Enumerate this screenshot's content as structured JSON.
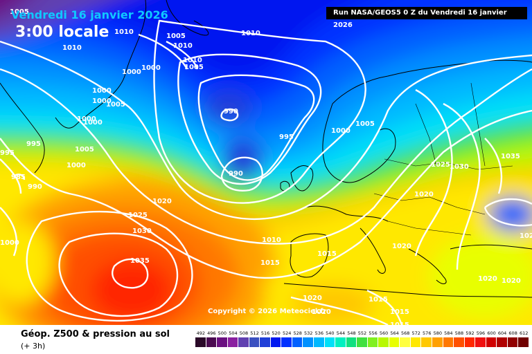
{
  "header": {
    "date": "Vendredi 16 janvier 2026",
    "time": "3:00 locale",
    "run_info": "Run NASA/GEOS5 0 Z du Vendredi 16 janvier 2026"
  },
  "footer": {
    "title": "Géop. Z500 & pression au sol",
    "subtitle": "(+ 3h)",
    "copyright": "Copyright © 2026 Meteociel.fr"
  },
  "legend": {
    "values": [
      "492",
      "496",
      "500",
      "504",
      "508",
      "512",
      "516",
      "520",
      "524",
      "528",
      "532",
      "536",
      "540",
      "544",
      "548",
      "552",
      "556",
      "560",
      "564",
      "568",
      "572",
      "576",
      "580",
      "584",
      "588",
      "592",
      "596",
      "600",
      "604",
      "608",
      "612"
    ],
    "colors": [
      "#2a0a28",
      "#4a0a50",
      "#6a1080",
      "#8a20a0",
      "#6040b0",
      "#3a50c0",
      "#2040d8",
      "#0018f0",
      "#0030ff",
      "#0060ff",
      "#0090ff",
      "#00b8ff",
      "#00e0f8",
      "#00f0c0",
      "#10e080",
      "#40e040",
      "#80f020",
      "#b8f800",
      "#e8ff00",
      "#ffff40",
      "#ffe800",
      "#ffc800",
      "#ffa000",
      "#ff7800",
      "#ff5000",
      "#ff2800",
      "#f01010",
      "#d00000",
      "#b00000",
      "#900000",
      "#700000"
    ]
  },
  "isobars": {
    "labels": [
      "1005",
      "1010",
      "1005",
      "1010",
      "1010",
      "1010",
      "1010",
      "1005",
      "1000",
      "1000",
      "1000",
      "1000",
      "1005",
      "1000",
      "1000",
      "990",
      "995",
      "990",
      "1000",
      "1005",
      "995",
      "1005",
      "995",
      "985",
      "990",
      "1000",
      "1020",
      "1025",
      "1030",
      "1035",
      "1000",
      "1035",
      "1025",
      "1030",
      "1020",
      "1010",
      "1015",
      "1015",
      "1020",
      "1020",
      "1020",
      "1015",
      "1015",
      "1015",
      "1020",
      "1020",
      "1020"
    ]
  },
  "colors": {
    "contour": "#ffffff",
    "date_text": "#10c8ff",
    "run_box_bg": "#000000"
  }
}
